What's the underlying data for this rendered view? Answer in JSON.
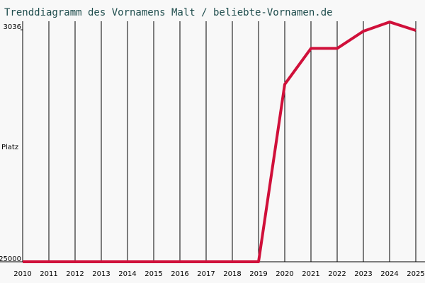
{
  "chart_data": {
    "type": "line",
    "title": "Trenddiagramm des Vornamens Malt / beliebte-Vornamen.de",
    "y_label": "Platz",
    "x": [
      2010,
      2011,
      2012,
      2013,
      2014,
      2015,
      2016,
      2017,
      2018,
      2019,
      2020,
      2021,
      2022,
      2023,
      2024,
      2025
    ],
    "series": [
      {
        "name": "Malt",
        "color": "#d0103a",
        "values": [
          25000,
          25000,
          25000,
          25000,
          25000,
          25000,
          25000,
          25000,
          25000,
          25000,
          8200,
          4800,
          4800,
          3170,
          2300,
          3100
        ]
      }
    ],
    "xlim": [
      2010,
      2025
    ],
    "xticks": [
      2010,
      2011,
      2012,
      2013,
      2014,
      2015,
      2016,
      2017,
      2018,
      2019,
      2020,
      2021,
      2022,
      2023,
      2024,
      2025
    ],
    "ylim": [
      25000,
      2227
    ],
    "yticks": [
      3036,
      25000
    ],
    "grid": true
  }
}
